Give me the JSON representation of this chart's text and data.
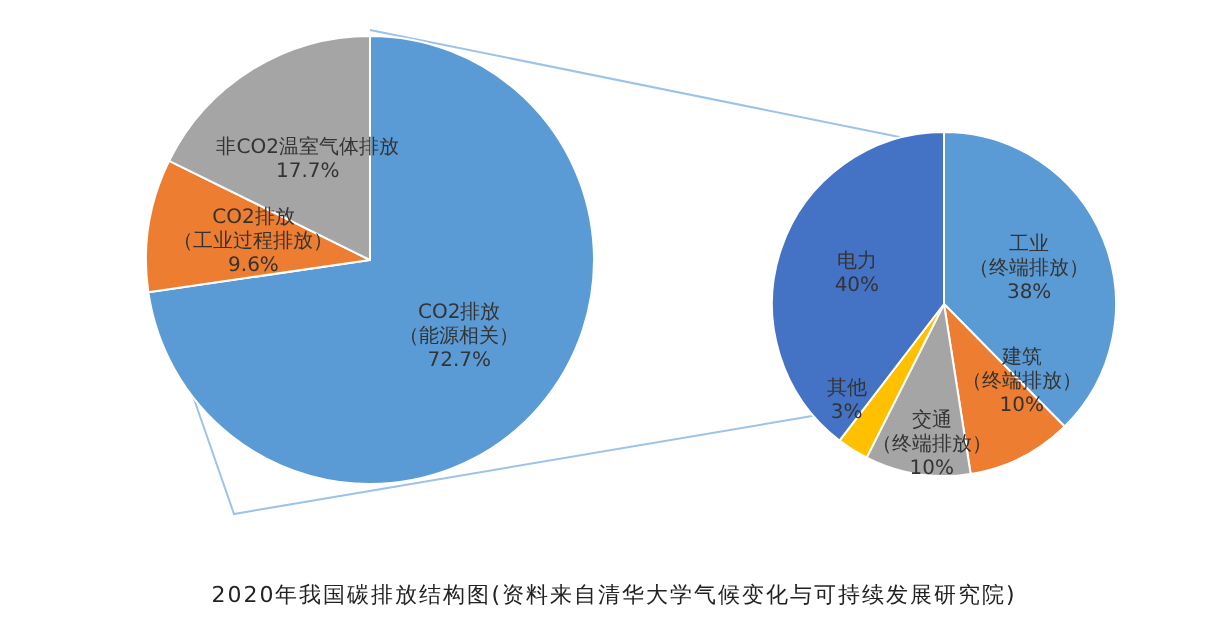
{
  "chart_data": [
    {
      "type": "pie",
      "title": "2020年我国碳排放结构图(资料来自清华大学气候变化与可持续发展研究院)",
      "categories": [
        "CO2排放（能源相关）",
        "CO2排放（工业过程排放）",
        "非CO2温室气体排放"
      ],
      "values": [
        72.7,
        9.6,
        17.7
      ],
      "value_labels": [
        "72.7%",
        "9.6%",
        "17.7%"
      ],
      "colors": [
        "#5b9bd5",
        "#ed7d31",
        "#a5a5a5"
      ],
      "legend": false
    },
    {
      "type": "pie",
      "categories": [
        "工业（终端排放）",
        "建筑（终端排放）",
        "交通（终端排放）",
        "其他",
        "电力"
      ],
      "values": [
        38,
        10,
        10,
        3,
        40
      ],
      "value_labels": [
        "38%",
        "10%",
        "10%",
        "3%",
        "40%"
      ],
      "colors": [
        "#5b9bd5",
        "#ed7d31",
        "#a5a5a5",
        "#ffc000",
        "#4472c4"
      ],
      "legend": false
    }
  ]
}
